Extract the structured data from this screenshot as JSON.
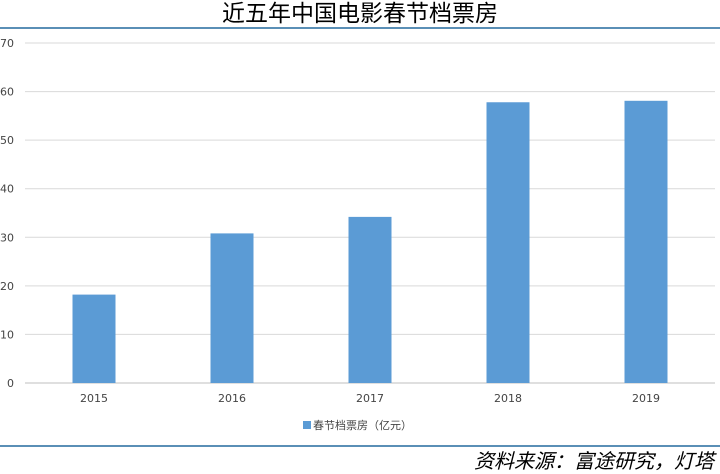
{
  "title": "近五年中国电影春节档票房",
  "source": "资料来源：富途研究，灯塔",
  "colors": {
    "bar": "#5b9bd5",
    "rule": "#5a8fb6",
    "grid": "#d9d9d9"
  },
  "chart_data": {
    "type": "bar",
    "categories": [
      "2015",
      "2016",
      "2017",
      "2018",
      "2019"
    ],
    "series": [
      {
        "name": "春节档票房（亿元）",
        "values": [
          18.2,
          30.8,
          34.2,
          57.8,
          58.1
        ]
      }
    ],
    "ylim": [
      0,
      70
    ],
    "yticks": [
      0,
      10,
      20,
      30,
      40,
      50,
      60,
      70
    ],
    "grid": true,
    "legend": "bottom-center"
  }
}
